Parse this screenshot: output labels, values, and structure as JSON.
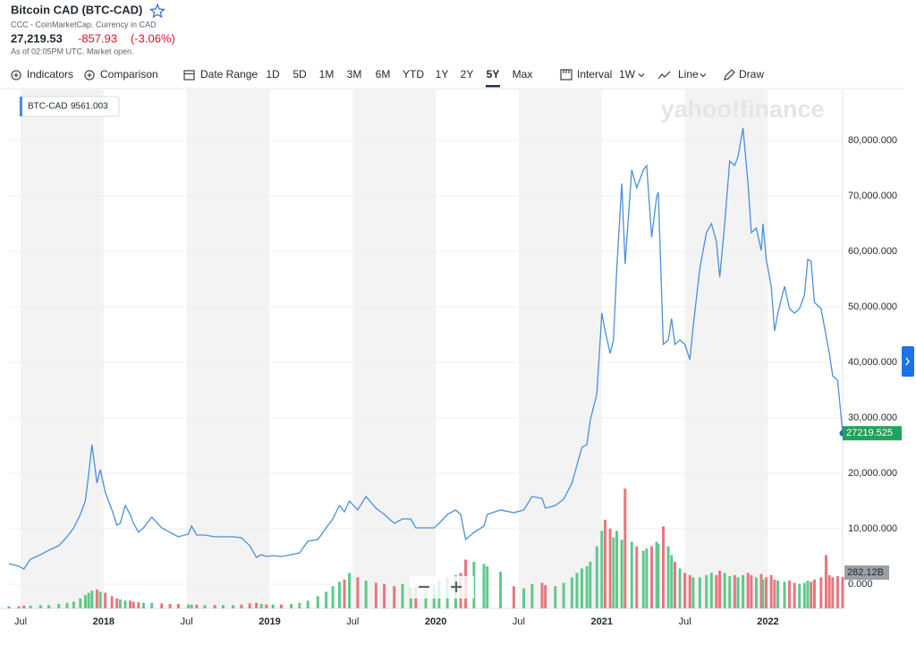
{
  "header": {
    "title": "Bitcoin CAD (BTC-CAD)",
    "subtitle": "CCC - CoinMarketCap. Currency in CAD",
    "price": "27,219.53",
    "change": "-857.93",
    "change_percent": "(-3.06%)",
    "status": "As of 02:05PM UTC. Market open."
  },
  "toolbar": {
    "indicators": "Indicators",
    "comparison": "Comparison",
    "date_range": "Date Range",
    "ranges": [
      "1D",
      "5D",
      "1M",
      "3M",
      "6M",
      "YTD",
      "1Y",
      "2Y",
      "5Y",
      "Max"
    ],
    "selected": "5Y",
    "interval": "Interval",
    "interval_value": "1W",
    "chart_type": "Line",
    "draw": "Draw"
  },
  "chart_data": {
    "type": "line",
    "watermark": "yahoo!finance",
    "legend_value": 9561.003,
    "x": [
      2017.43,
      2017.49,
      2017.52,
      2017.56,
      2017.62,
      2017.67,
      2017.73,
      2017.78,
      2017.82,
      2017.86,
      2017.89,
      2017.91,
      2017.93,
      2017.96,
      2017.98,
      2018.01,
      2018.05,
      2018.08,
      2018.1,
      2018.13,
      2018.16,
      2018.18,
      2018.21,
      2018.24,
      2018.29,
      2018.35,
      2018.4,
      2018.45,
      2018.51,
      2018.53,
      2018.56,
      2018.61,
      2018.67,
      2018.72,
      2018.78,
      2018.83,
      2018.88,
      2018.92,
      2018.95,
      2018.98,
      2019.02,
      2019.07,
      2019.13,
      2019.18,
      2019.23,
      2019.29,
      2019.34,
      2019.38,
      2019.42,
      2019.45,
      2019.48,
      2019.53,
      2019.58,
      2019.64,
      2019.69,
      2019.75,
      2019.8,
      2019.85,
      2019.88,
      2019.94,
      2019.99,
      2020.02,
      2020.07,
      2020.12,
      2020.15,
      2020.18,
      2020.23,
      2020.29,
      2020.31,
      2020.39,
      2020.47,
      2020.53,
      2020.58,
      2020.64,
      2020.66,
      2020.72,
      2020.77,
      2020.82,
      2020.85,
      2020.88,
      2020.91,
      2020.93,
      2020.97,
      2021.0,
      2021.02,
      2021.05,
      2021.07,
      2021.09,
      2021.12,
      2021.14,
      2021.18,
      2021.21,
      2021.25,
      2021.27,
      2021.3,
      2021.33,
      2021.34,
      2021.37,
      2021.4,
      2021.42,
      2021.44,
      2021.47,
      2021.5,
      2021.53,
      2021.55,
      2021.59,
      2021.63,
      2021.66,
      2021.69,
      2021.71,
      2021.74,
      2021.77,
      2021.8,
      2021.82,
      2021.85,
      2021.88,
      2021.9,
      2021.93,
      2021.96,
      2021.97,
      2021.99,
      2022.02,
      2022.04,
      2022.06,
      2022.1,
      2022.13,
      2022.16,
      2022.19,
      2022.22,
      2022.24,
      2022.26,
      2022.28,
      2022.32,
      2022.35,
      2022.37,
      2022.39,
      2022.42,
      2022.45
    ],
    "series": [
      {
        "name": "BTC-CAD",
        "color": "#4a90d9",
        "values": [
          3710,
          3230,
          2740,
          4520,
          5320,
          6130,
          6940,
          8550,
          10160,
          12580,
          15000,
          19840,
          25160,
          18230,
          20650,
          16610,
          13390,
          10650,
          10970,
          14190,
          12580,
          10970,
          9350,
          10160,
          12100,
          10160,
          9350,
          8550,
          9030,
          10480,
          8870,
          8870,
          8550,
          8550,
          8550,
          8390,
          6940,
          4840,
          5320,
          5000,
          5160,
          5000,
          5320,
          5650,
          7740,
          8060,
          10160,
          11770,
          14190,
          13060,
          15000,
          13390,
          15810,
          13710,
          12580,
          10970,
          11770,
          11770,
          10160,
          10160,
          10160,
          10970,
          12580,
          13390,
          12580,
          8060,
          9350,
          10480,
          12580,
          13390,
          12900,
          13390,
          15810,
          15480,
          13710,
          14190,
          15320,
          18230,
          21450,
          24680,
          25160,
          29520,
          34350,
          48870,
          45650,
          41610,
          44030,
          56940,
          72260,
          57740,
          74680,
          71450,
          74680,
          75480,
          62580,
          69840,
          70650,
          43230,
          44030,
          47900,
          43230,
          44030,
          43230,
          40480,
          46450,
          56940,
          63390,
          65000,
          61770,
          55320,
          65000,
          76290,
          75480,
          77100,
          82260,
          72260,
          63390,
          64190,
          60160,
          65000,
          58550,
          53710,
          45650,
          48870,
          53710,
          49680,
          48870,
          49680,
          52100,
          58550,
          58230,
          50810,
          49680,
          44840,
          41610,
          37580,
          36770,
          27219.525
        ]
      }
    ],
    "last_label": "27219.525",
    "volume": {
      "values": [
        20,
        20,
        25,
        25,
        30,
        30,
        40,
        50,
        60,
        90,
        120,
        140,
        160,
        170,
        150,
        140,
        110,
        90,
        80,
        70,
        70,
        60,
        55,
        50,
        50,
        45,
        40,
        40,
        35,
        35,
        35,
        30,
        30,
        30,
        30,
        35,
        45,
        50,
        40,
        35,
        35,
        35,
        40,
        50,
        70,
        110,
        150,
        200,
        240,
        260,
        320,
        280,
        250,
        230,
        220,
        200,
        220,
        190,
        200,
        190,
        210,
        250,
        280,
        300,
        320,
        440,
        420,
        400,
        380,
        330,
        200,
        180,
        220,
        230,
        210,
        200,
        230,
        280,
        320,
        360,
        380,
        420,
        560,
        700,
        800,
        720,
        640,
        700,
        620,
        1080,
        600,
        560,
        520,
        540,
        560,
        600,
        580,
        740,
        560,
        480,
        420,
        360,
        320,
        300,
        280,
        280,
        300,
        320,
        300,
        340,
        320,
        290,
        300,
        280,
        300,
        320,
        300,
        280,
        310,
        260,
        280,
        300,
        260,
        250,
        240,
        250,
        230,
        220,
        230,
        250,
        240,
        260,
        280,
        480,
        300,
        280,
        290,
        282.12
      ],
      "ylim": [
        0,
        4680
      ],
      "last_label": "282.12B",
      "up_color": "#5fc98a",
      "down_color": "#e8767f"
    },
    "xlim": [
      2017.43,
      2022.45
    ],
    "xticks": [
      {
        "value": 2017.5,
        "label": "Jul"
      },
      2018,
      {
        "value": 2018.5,
        "label": "Jul"
      },
      2019,
      {
        "value": 2019.5,
        "label": "Jul"
      },
      2020,
      {
        "value": 2020.5,
        "label": "Jul"
      },
      2021,
      {
        "value": 2021.5,
        "label": "Jul"
      },
      2022
    ],
    "ylim": [
      -4355,
      89190
    ],
    "yticks": [
      {
        "value": 0,
        "label": "0.000"
      },
      {
        "value": 10000,
        "label": "10,000.000"
      },
      {
        "value": 20000,
        "label": "20,000.000"
      },
      {
        "value": 30000,
        "label": "30,000.000"
      },
      {
        "value": 40000,
        "label": "40,000.000"
      },
      {
        "value": 50000,
        "label": "50,000.000"
      },
      {
        "value": 60000,
        "label": "60,000.000"
      },
      {
        "value": 70000,
        "label": "70,000.000"
      },
      {
        "value": 80000,
        "label": "80,000.000"
      }
    ],
    "grid": true
  }
}
